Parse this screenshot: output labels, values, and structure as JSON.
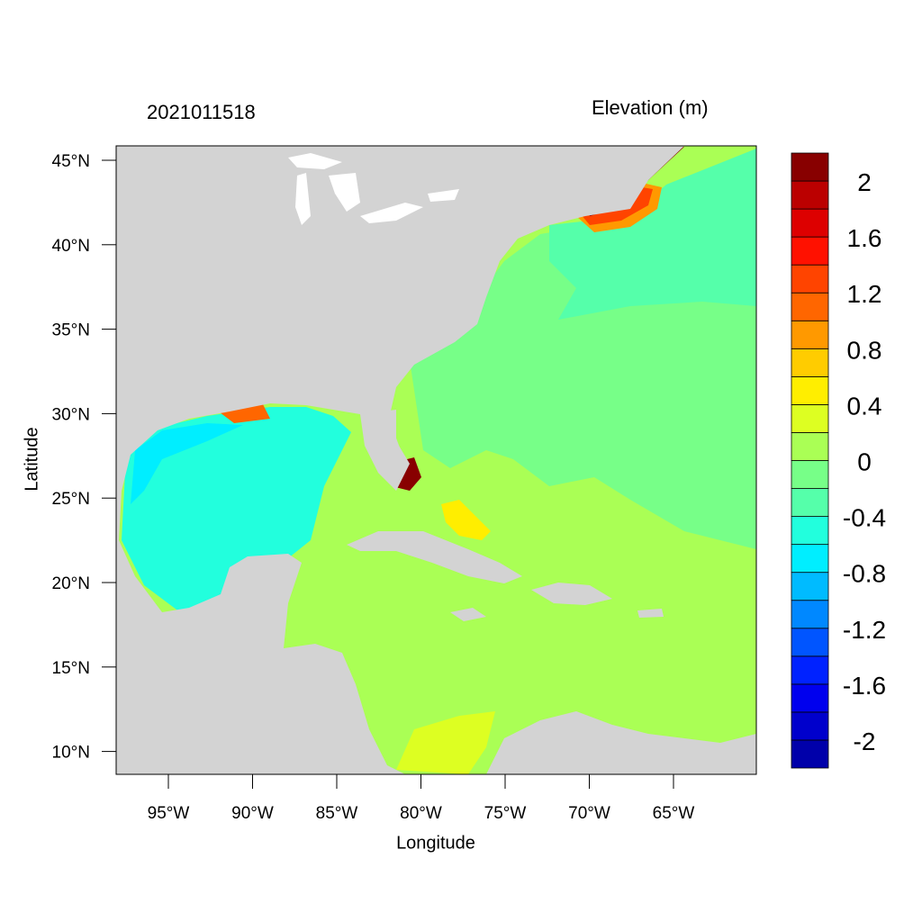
{
  "timestamp_label": "2021011518",
  "colorbar": {
    "title": "Elevation (m)",
    "colors": [
      "#0000aa",
      "#0000cc",
      "#0000ee",
      "#0022ff",
      "#0055ff",
      "#0088ff",
      "#00bbff",
      "#00eeff",
      "#22ffdd",
      "#55ffaa",
      "#77ff88",
      "#aaff55",
      "#ddff22",
      "#ffee00",
      "#ffcc00",
      "#ff9900",
      "#ff6600",
      "#ff4400",
      "#ff1100",
      "#dd0000",
      "#bb0000",
      "#880000"
    ],
    "labels": [
      "2",
      "1.6",
      "1.2",
      "0.8",
      "0.4",
      "0",
      "-0.4",
      "-0.8",
      "-1.2",
      "-1.6",
      "-2"
    ]
  },
  "axes": {
    "xlabel": "Longitude",
    "ylabel": "Latitude",
    "lon_ticks": [
      "95°W",
      "90°W",
      "85°W",
      "80°W",
      "75°W",
      "70°W",
      "65°W"
    ],
    "lat_ticks": [
      "45°N",
      "40°N",
      "35°N",
      "30°N",
      "25°N",
      "20°N",
      "15°N",
      "10°N"
    ]
  },
  "colors": {
    "land": "#d3d3d3",
    "lake": "#ffffff"
  }
}
